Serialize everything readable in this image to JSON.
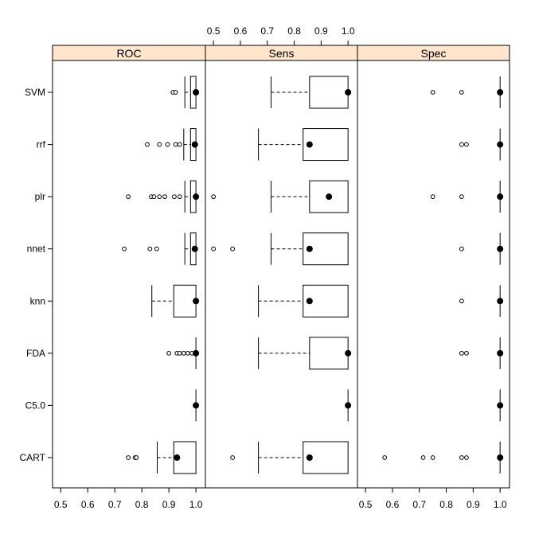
{
  "chart_data": {
    "type": "boxplot",
    "title": "",
    "xlabel": "",
    "ylabel": "",
    "categories": [
      "CART",
      "C5.0",
      "FDA",
      "knn",
      "nnet",
      "plr",
      "rrf",
      "SVM"
    ],
    "x_ticks": [
      "0.5",
      "0.6",
      "0.7",
      "0.8",
      "0.9",
      "1.0"
    ],
    "xlim": [
      0.47,
      1.035
    ],
    "grid": false,
    "panels": [
      {
        "name": "ROC",
        "tick_side": "bottom",
        "boxes": [
          {
            "category": "CART",
            "min": 0.857,
            "q1": 0.918,
            "median": 0.93,
            "q3": 1.0,
            "max": 1.0,
            "outliers": [
              0.75,
              0.775,
              0.78
            ]
          },
          {
            "category": "C5.0",
            "min": 1.0,
            "q1": 1.0,
            "median": 1.0,
            "q3": 1.0,
            "max": 1.0,
            "outliers": []
          },
          {
            "category": "FDA",
            "min": 1.0,
            "q1": 1.0,
            "median": 1.0,
            "q3": 1.0,
            "max": 1.0,
            "outliers": [
              0.9,
              0.93,
              0.94,
              0.955,
              0.97,
              0.985
            ]
          },
          {
            "category": "knn",
            "min": 0.837,
            "q1": 0.918,
            "median": 1.0,
            "q3": 1.0,
            "max": 1.0,
            "outliers": []
          },
          {
            "category": "nnet",
            "min": 0.959,
            "q1": 0.98,
            "median": 0.996,
            "q3": 1.0,
            "max": 1.0,
            "outliers": [
              0.735,
              0.83,
              0.855
            ]
          },
          {
            "category": "plr",
            "min": 0.959,
            "q1": 0.98,
            "median": 1.0,
            "q3": 1.0,
            "max": 1.0,
            "outliers": [
              0.75,
              0.835,
              0.845,
              0.865,
              0.885,
              0.92,
              0.94
            ]
          },
          {
            "category": "rrf",
            "min": 0.955,
            "q1": 0.98,
            "median": 0.996,
            "q3": 1.0,
            "max": 1.0,
            "outliers": [
              0.82,
              0.865,
              0.895,
              0.925,
              0.94
            ]
          },
          {
            "category": "SVM",
            "min": 0.959,
            "q1": 0.98,
            "median": 1.0,
            "q3": 1.0,
            "max": 1.0,
            "outliers": [
              0.915,
              0.925
            ]
          }
        ]
      },
      {
        "name": "Sens",
        "tick_side": "top",
        "boxes": [
          {
            "category": "CART",
            "min": 0.667,
            "q1": 0.833,
            "median": 0.857,
            "q3": 1.0,
            "max": 1.0,
            "outliers": [
              0.571
            ]
          },
          {
            "category": "C5.0",
            "min": 1.0,
            "q1": 1.0,
            "median": 1.0,
            "q3": 1.0,
            "max": 1.0,
            "outliers": []
          },
          {
            "category": "FDA",
            "min": 0.667,
            "q1": 0.857,
            "median": 1.0,
            "q3": 1.0,
            "max": 1.0,
            "outliers": []
          },
          {
            "category": "knn",
            "min": 0.667,
            "q1": 0.833,
            "median": 0.857,
            "q3": 1.0,
            "max": 1.0,
            "outliers": []
          },
          {
            "category": "nnet",
            "min": 0.714,
            "q1": 0.833,
            "median": 0.857,
            "q3": 1.0,
            "max": 1.0,
            "outliers": [
              0.5,
              0.571
            ]
          },
          {
            "category": "plr",
            "min": 0.714,
            "q1": 0.857,
            "median": 0.929,
            "q3": 1.0,
            "max": 1.0,
            "outliers": [
              0.5
            ]
          },
          {
            "category": "rrf",
            "min": 0.667,
            "q1": 0.833,
            "median": 0.857,
            "q3": 1.0,
            "max": 1.0,
            "outliers": []
          },
          {
            "category": "SVM",
            "min": 0.714,
            "q1": 0.857,
            "median": 1.0,
            "q3": 1.0,
            "max": 1.0,
            "outliers": []
          }
        ]
      },
      {
        "name": "Spec",
        "tick_side": "bottom",
        "boxes": [
          {
            "category": "CART",
            "min": 1.0,
            "q1": 1.0,
            "median": 1.0,
            "q3": 1.0,
            "max": 1.0,
            "outliers": [
              0.571,
              0.714,
              0.75,
              0.857,
              0.875
            ]
          },
          {
            "category": "C5.0",
            "min": 1.0,
            "q1": 1.0,
            "median": 1.0,
            "q3": 1.0,
            "max": 1.0,
            "outliers": []
          },
          {
            "category": "FDA",
            "min": 1.0,
            "q1": 1.0,
            "median": 1.0,
            "q3": 1.0,
            "max": 1.0,
            "outliers": [
              0.857,
              0.875
            ]
          },
          {
            "category": "knn",
            "min": 1.0,
            "q1": 1.0,
            "median": 1.0,
            "q3": 1.0,
            "max": 1.0,
            "outliers": [
              0.857
            ]
          },
          {
            "category": "nnet",
            "min": 1.0,
            "q1": 1.0,
            "median": 1.0,
            "q3": 1.0,
            "max": 1.0,
            "outliers": [
              0.857
            ]
          },
          {
            "category": "plr",
            "min": 1.0,
            "q1": 1.0,
            "median": 1.0,
            "q3": 1.0,
            "max": 1.0,
            "outliers": [
              0.75,
              0.857
            ]
          },
          {
            "category": "rrf",
            "min": 1.0,
            "q1": 1.0,
            "median": 1.0,
            "q3": 1.0,
            "max": 1.0,
            "outliers": [
              0.857,
              0.875
            ]
          },
          {
            "category": "SVM",
            "min": 1.0,
            "q1": 1.0,
            "median": 1.0,
            "q3": 1.0,
            "max": 1.0,
            "outliers": [
              0.75,
              0.857
            ]
          }
        ]
      }
    ],
    "colors": {
      "strip_fill": "#FFE5CC",
      "frame": "#000000",
      "box_fill": "#FFFFFF"
    }
  }
}
